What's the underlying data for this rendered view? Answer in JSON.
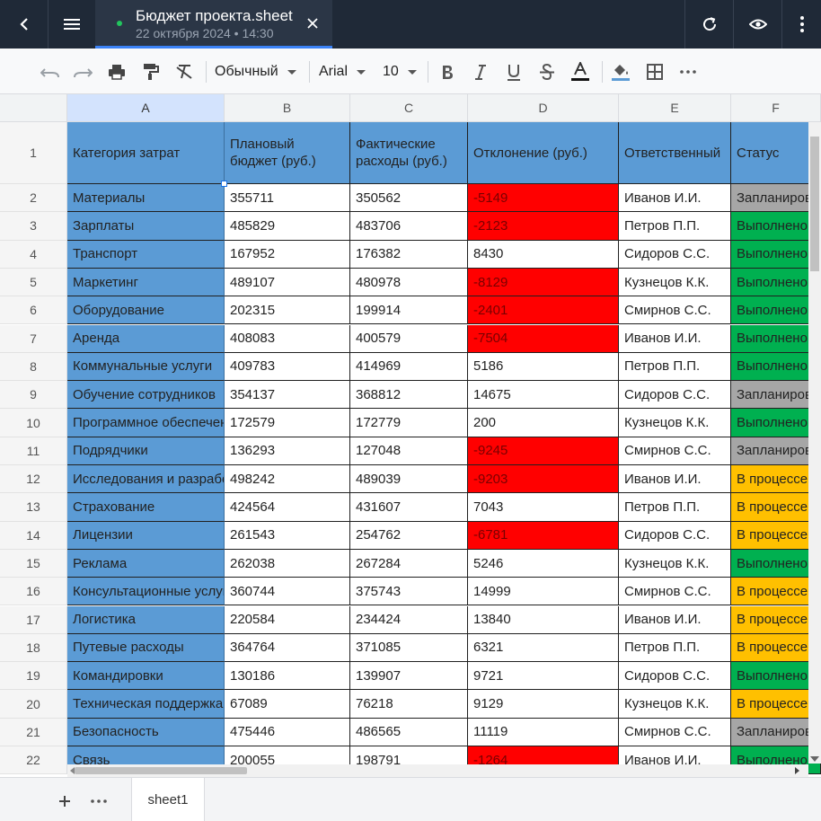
{
  "window": {
    "doc_title": "Бюджет проекта.sheet",
    "doc_subtitle": "22 октября 2024 • 14:30"
  },
  "toolbar": {
    "style_value": "Обычный",
    "font_value": "Arial",
    "size_value": "10"
  },
  "grid": {
    "column_letters": [
      "A",
      "B",
      "C",
      "D",
      "E",
      "F"
    ],
    "header_row_number": "1",
    "headers": [
      "Категория затрат",
      "Плановый бюджет (руб.)",
      "Фактические расходы (руб.)",
      "Отклонение (руб.)",
      "Ответственный",
      "Статус"
    ],
    "rows": [
      {
        "n": "2",
        "cat": "Материалы",
        "plan": "355711",
        "fact": "350562",
        "dev": "-5149",
        "resp": "Иванов И.И.",
        "status": "Запланировано"
      },
      {
        "n": "3",
        "cat": "Зарплаты",
        "plan": "485829",
        "fact": "483706",
        "dev": "-2123",
        "resp": "Петров П.П.",
        "status": "Выполнено"
      },
      {
        "n": "4",
        "cat": "Транспорт",
        "plan": "167952",
        "fact": "176382",
        "dev": "8430",
        "resp": "Сидоров С.С.",
        "status": "Выполнено"
      },
      {
        "n": "5",
        "cat": "Маркетинг",
        "plan": "489107",
        "fact": "480978",
        "dev": "-8129",
        "resp": "Кузнецов К.К.",
        "status": "Выполнено"
      },
      {
        "n": "6",
        "cat": "Оборудование",
        "plan": "202315",
        "fact": "199914",
        "dev": "-2401",
        "resp": "Смирнов С.С.",
        "status": "Выполнено"
      },
      {
        "n": "7",
        "cat": "Аренда",
        "plan": "408083",
        "fact": "400579",
        "dev": "-7504",
        "resp": "Иванов И.И.",
        "status": "Выполнено"
      },
      {
        "n": "8",
        "cat": "Коммунальные услуги",
        "plan": "409783",
        "fact": "414969",
        "dev": "5186",
        "resp": "Петров П.П.",
        "status": "Выполнено"
      },
      {
        "n": "9",
        "cat": "Обучение сотрудников",
        "plan": "354137",
        "fact": "368812",
        "dev": "14675",
        "resp": "Сидоров С.С.",
        "status": "Запланировано"
      },
      {
        "n": "10",
        "cat": "Программное обеспечение",
        "plan": "172579",
        "fact": "172779",
        "dev": "200",
        "resp": "Кузнецов К.К.",
        "status": "Выполнено"
      },
      {
        "n": "11",
        "cat": "Подрядчики",
        "plan": "136293",
        "fact": "127048",
        "dev": "-9245",
        "resp": "Смирнов С.С.",
        "status": "Запланировано"
      },
      {
        "n": "12",
        "cat": "Исследования и разработки",
        "plan": "498242",
        "fact": "489039",
        "dev": "-9203",
        "resp": "Иванов И.И.",
        "status": "В процессе"
      },
      {
        "n": "13",
        "cat": "Страхование",
        "plan": "424564",
        "fact": "431607",
        "dev": "7043",
        "resp": "Петров П.П.",
        "status": "В процессе"
      },
      {
        "n": "14",
        "cat": "Лицензии",
        "plan": "261543",
        "fact": "254762",
        "dev": "-6781",
        "resp": "Сидоров С.С.",
        "status": "В процессе"
      },
      {
        "n": "15",
        "cat": "Реклама",
        "plan": "262038",
        "fact": "267284",
        "dev": "5246",
        "resp": "Кузнецов К.К.",
        "status": "Выполнено"
      },
      {
        "n": "16",
        "cat": "Консультационные услуги",
        "plan": "360744",
        "fact": "375743",
        "dev": "14999",
        "resp": "Смирнов С.С.",
        "status": "В процессе"
      },
      {
        "n": "17",
        "cat": "Логистика",
        "plan": "220584",
        "fact": "234424",
        "dev": "13840",
        "resp": "Иванов И.И.",
        "status": "В процессе"
      },
      {
        "n": "18",
        "cat": "Путевые расходы",
        "plan": "364764",
        "fact": "371085",
        "dev": "6321",
        "resp": "Петров П.П.",
        "status": "В процессе"
      },
      {
        "n": "19",
        "cat": "Командировки",
        "plan": "130186",
        "fact": "139907",
        "dev": "9721",
        "resp": "Сидоров С.С.",
        "status": "Выполнено"
      },
      {
        "n": "20",
        "cat": "Техническая поддержка",
        "plan": "67089",
        "fact": "76218",
        "dev": "9129",
        "resp": "Кузнецов К.К.",
        "status": "В процессе"
      },
      {
        "n": "21",
        "cat": "Безопасность",
        "plan": "475446",
        "fact": "486565",
        "dev": "11119",
        "resp": "Смирнов С.С.",
        "status": "Запланировано"
      },
      {
        "n": "22",
        "cat": "Связь",
        "plan": "200055",
        "fact": "198791",
        "dev": "-1264",
        "resp": "Иванов И.И.",
        "status": "Выполнено"
      }
    ]
  },
  "sheets": {
    "tabs": [
      "sheet1"
    ]
  },
  "colors": {
    "header_fill": "#5b9bd5",
    "negative_fill": "#ff0000",
    "status_planned": "#a6a6a6",
    "status_done": "#00b050",
    "status_in_progress": "#ffc000"
  }
}
